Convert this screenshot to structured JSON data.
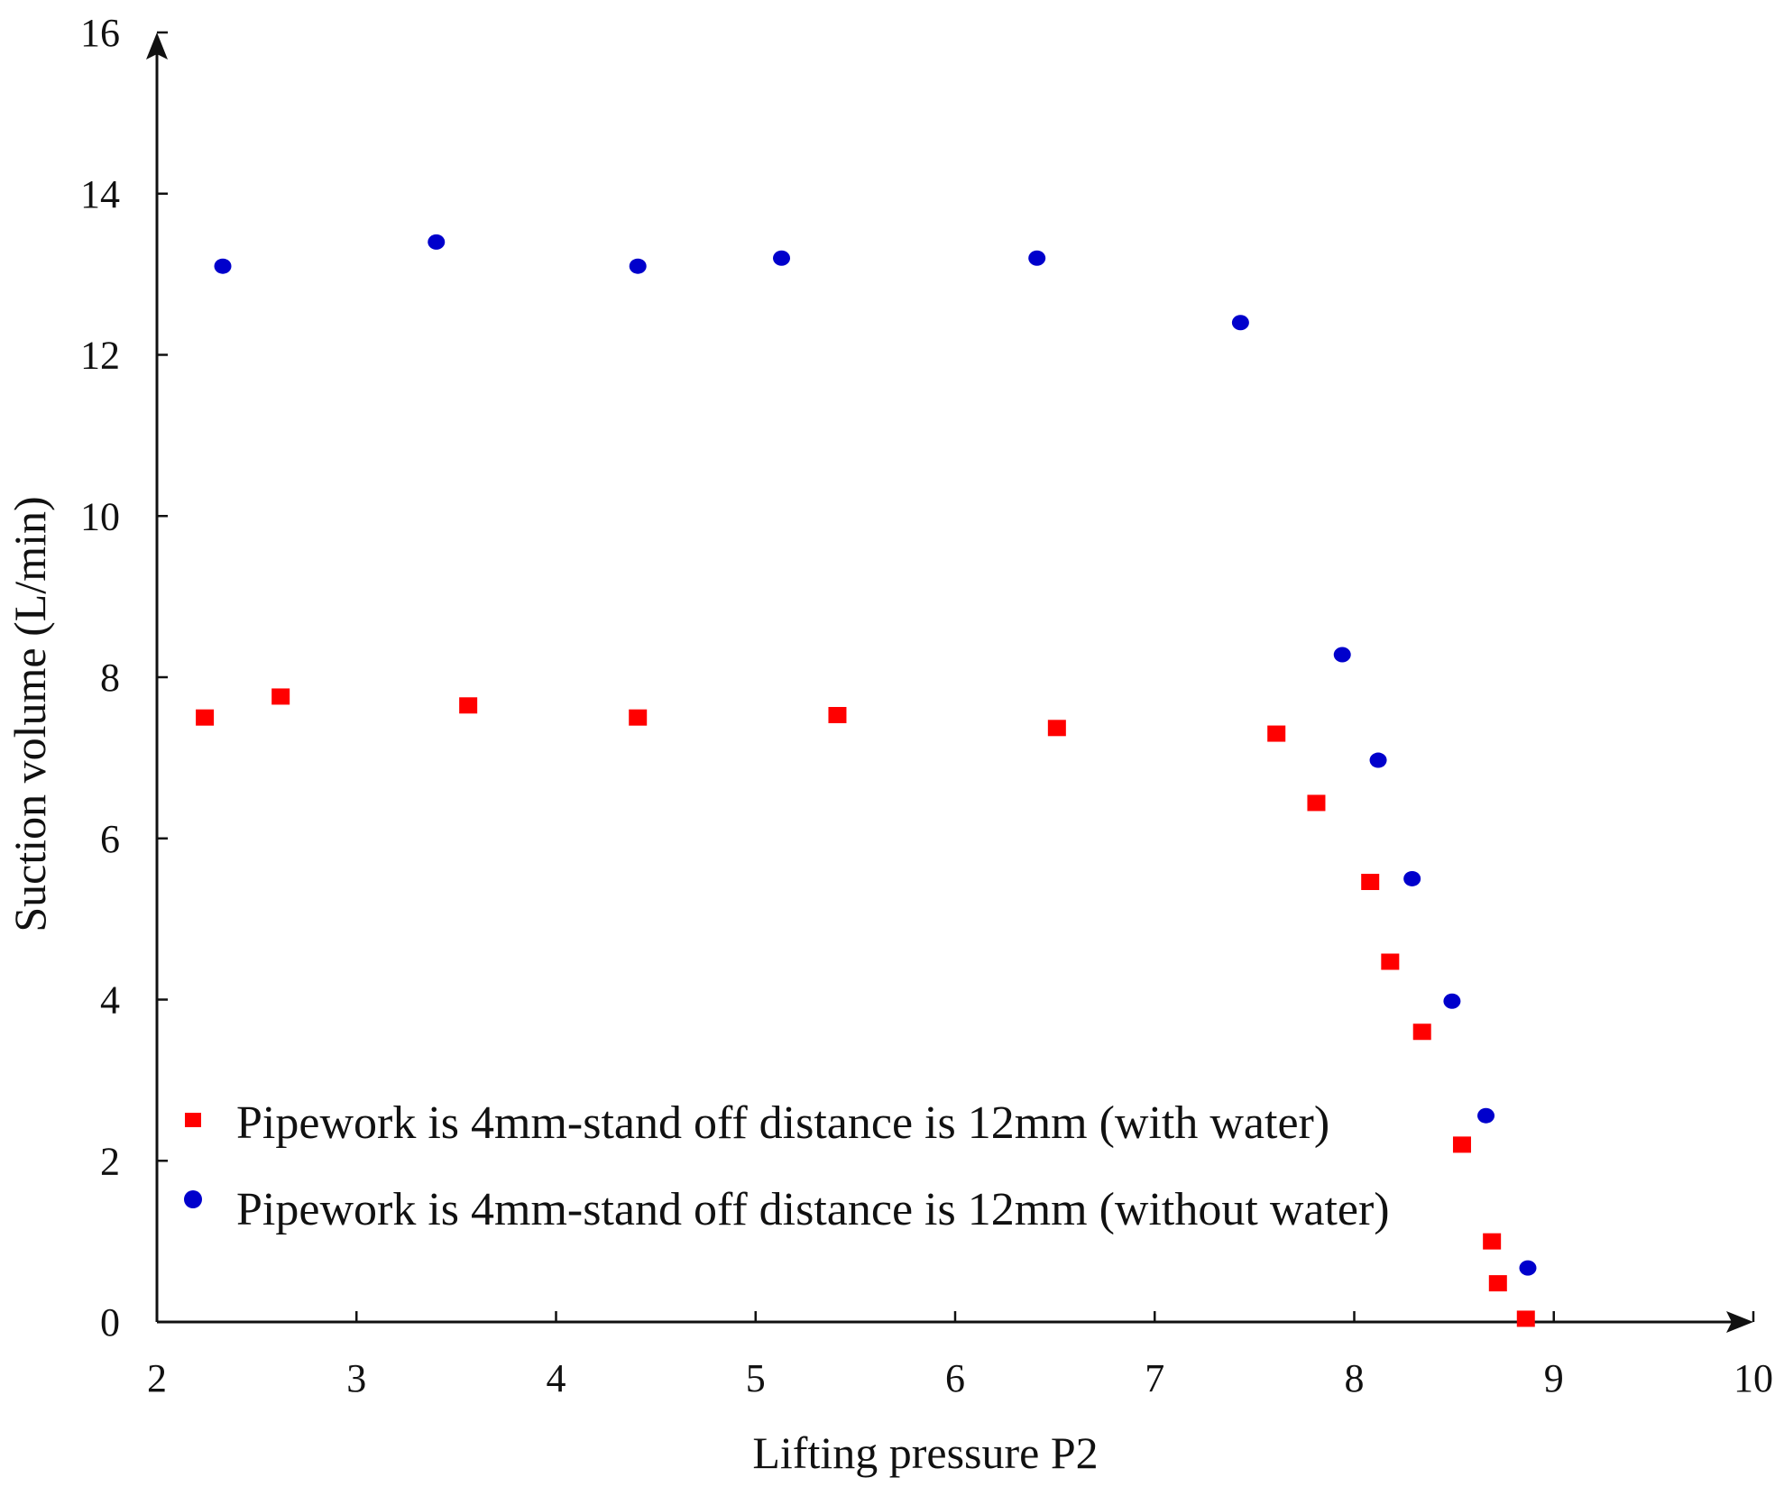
{
  "chart_data": {
    "type": "scatter",
    "title": "",
    "xlabel": "Lifting pressure P2",
    "ylabel": "Suction volume (L/min)",
    "xlim": [
      2,
      10
    ],
    "ylim": [
      0,
      16
    ],
    "x_ticks": [
      2,
      3,
      4,
      5,
      6,
      7,
      8,
      9,
      10
    ],
    "y_ticks": [
      0,
      2,
      4,
      6,
      8,
      10,
      12,
      14,
      16
    ],
    "grid": false,
    "legend_position": "bottom-left",
    "series": [
      {
        "name": "Pipework is 4mm-stand off distance is 12mm (with water)",
        "marker": "square",
        "color": "#ff0000",
        "points": [
          {
            "x": 2.24,
            "y": 7.5
          },
          {
            "x": 2.62,
            "y": 7.76
          },
          {
            "x": 3.56,
            "y": 7.65
          },
          {
            "x": 4.41,
            "y": 7.5
          },
          {
            "x": 5.41,
            "y": 7.53
          },
          {
            "x": 6.51,
            "y": 7.37
          },
          {
            "x": 7.61,
            "y": 7.3
          },
          {
            "x": 7.81,
            "y": 6.44
          },
          {
            "x": 8.08,
            "y": 5.46
          },
          {
            "x": 8.18,
            "y": 4.47
          },
          {
            "x": 8.34,
            "y": 3.6
          },
          {
            "x": 8.54,
            "y": 2.2
          },
          {
            "x": 8.69,
            "y": 1.0
          },
          {
            "x": 8.72,
            "y": 0.48
          },
          {
            "x": 8.86,
            "y": 0.04
          }
        ]
      },
      {
        "name": "Pipework is 4mm-stand off distance is 12mm (without water)",
        "marker": "circle",
        "color": "#0000cc",
        "points": [
          {
            "x": 2.33,
            "y": 13.1
          },
          {
            "x": 3.4,
            "y": 13.4
          },
          {
            "x": 4.41,
            "y": 13.1
          },
          {
            "x": 5.13,
            "y": 13.2
          },
          {
            "x": 6.41,
            "y": 13.2
          },
          {
            "x": 7.43,
            "y": 12.4
          },
          {
            "x": 7.94,
            "y": 8.28
          },
          {
            "x": 8.12,
            "y": 6.97
          },
          {
            "x": 8.29,
            "y": 5.5
          },
          {
            "x": 8.49,
            "y": 3.98
          },
          {
            "x": 8.66,
            "y": 2.56
          },
          {
            "x": 8.87,
            "y": 0.67
          }
        ]
      }
    ]
  },
  "colors": {
    "axis": "#111111",
    "with_water": "#ff0000",
    "without_water": "#0000cc"
  }
}
